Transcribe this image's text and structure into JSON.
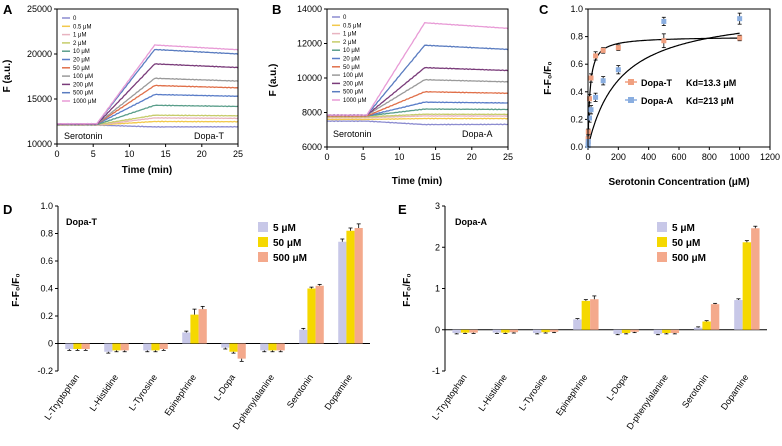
{
  "chart_data": [
    {
      "panel": "A",
      "type": "line",
      "title": "",
      "xlabel": "Time (min)",
      "ylabel": "F (a.u.)",
      "xlim": [
        0,
        25
      ],
      "ylim": [
        10000,
        25000
      ],
      "xticks": [
        0,
        5,
        10,
        15,
        20,
        25
      ],
      "yticks": [
        10000,
        15000,
        20000,
        25000
      ],
      "xtick_labels": [
        "0",
        "5",
        "10",
        "15",
        "20",
        "25"
      ],
      "ytick_labels": [
        "10000",
        "15000",
        "20000",
        "25000"
      ],
      "annotations": [
        "Serotonin",
        "Dopa-T"
      ],
      "legend": [
        "0",
        "0.5 μM",
        "1 μM",
        "2 μM",
        "10 μM",
        "20 μM",
        "50 μM",
        "100 μM",
        "200 μM",
        "500 μM",
        "1000 μM"
      ],
      "colors": [
        "#8c8cd0",
        "#f2c94c",
        "#e8b4c0",
        "#c6cc6a",
        "#5a9e8a",
        "#5a7dc8",
        "#e0704a",
        "#9a9a9a",
        "#7a3c7a",
        "#5a7cc0",
        "#e89bd6"
      ],
      "baselines": [
        12100,
        12100,
        12100,
        12150,
        12150,
        12200,
        12200,
        12200,
        12200,
        12250,
        12250
      ],
      "plateaus": [
        11900,
        12500,
        12900,
        13200,
        14300,
        15500,
        16500,
        17300,
        18900,
        20500,
        21000
      ]
    },
    {
      "panel": "B",
      "type": "line",
      "title": "",
      "xlabel": "Time (min)",
      "ylabel": "F (a.u.)",
      "xlim": [
        0,
        25
      ],
      "ylim": [
        6000,
        14000
      ],
      "xticks": [
        0,
        5,
        10,
        15,
        20,
        25
      ],
      "yticks": [
        6000,
        8000,
        10000,
        12000,
        14000
      ],
      "xtick_labels": [
        "0",
        "5",
        "10",
        "15",
        "20",
        "25"
      ],
      "ytick_labels": [
        "6000",
        "8000",
        "10000",
        "12000",
        "14000"
      ],
      "annotations": [
        "Serotonin",
        "Dopa-A"
      ],
      "legend": [
        "0",
        "0.5 μM",
        "1 μM",
        "2 μM",
        "10 μM",
        "20 μM",
        "50 μM",
        "100 μM",
        "200 μM",
        "500 μM",
        "1000 μM"
      ],
      "colors": [
        "#8c8cd0",
        "#f2c94c",
        "#e8b4c0",
        "#c6cc6a",
        "#5a9e8a",
        "#5a7dc8",
        "#e0704a",
        "#9a9a9a",
        "#7a3c7a",
        "#5a7cc0",
        "#e89bd6"
      ],
      "baselines": [
        7500,
        7600,
        7700,
        7750,
        7800,
        7800,
        7800,
        7850,
        7850,
        7850,
        7850
      ],
      "plateaus": [
        7300,
        7650,
        7800,
        7900,
        8200,
        8600,
        9200,
        9900,
        10600,
        11900,
        13200
      ]
    },
    {
      "panel": "C",
      "type": "scatter",
      "title": "",
      "xlabel": "Serotonin Concentration (μM)",
      "ylabel": "F-F₀/F₀",
      "xlim": [
        0,
        1200
      ],
      "ylim": [
        0,
        1.0
      ],
      "xticks": [
        0,
        200,
        400,
        600,
        800,
        1000,
        1200
      ],
      "yticks": [
        0.0,
        0.2,
        0.4,
        0.6,
        0.8,
        1.0
      ],
      "xtick_labels": [
        "0",
        "200",
        "400",
        "600",
        "800",
        "1000",
        "1200"
      ],
      "ytick_labels": [
        "0.0",
        "0.2",
        "0.4",
        "0.6",
        "0.8",
        "1.0"
      ],
      "series": [
        {
          "name": "Dopa-T",
          "kd_label": "Kd=13.3 μM",
          "color": "#f0a080",
          "kd": 13.3,
          "vmax": 0.8,
          "x": [
            0.5,
            1,
            2,
            10,
            20,
            50,
            100,
            200,
            500,
            1000
          ],
          "y": [
            0.03,
            0.06,
            0.11,
            0.35,
            0.5,
            0.66,
            0.7,
            0.72,
            0.77,
            0.79
          ],
          "err": [
            0.02,
            0.02,
            0.02,
            0.03,
            0.03,
            0.03,
            0.02,
            0.02,
            0.05,
            0.02
          ]
        },
        {
          "name": "Dopa-A",
          "kd_label": "Kd=213 μM",
          "color": "#8aaee0",
          "kd": 213,
          "vmax": 1.0,
          "x": [
            0.5,
            1,
            2,
            10,
            20,
            50,
            100,
            200,
            500,
            1000
          ],
          "y": [
            0.01,
            0.02,
            0.04,
            0.21,
            0.27,
            0.36,
            0.48,
            0.56,
            0.91,
            0.93
          ],
          "err": [
            0.01,
            0.01,
            0.01,
            0.03,
            0.03,
            0.03,
            0.03,
            0.03,
            0.03,
            0.04
          ]
        }
      ]
    },
    {
      "panel": "D",
      "type": "bar",
      "title": "Dopa-T",
      "xlabel": "",
      "ylabel": "F-F₀/F₀",
      "ylim": [
        -0.2,
        1.0
      ],
      "yticks": [
        -0.2,
        0,
        0.2,
        0.4,
        0.6,
        0.8,
        1.0
      ],
      "ytick_labels": [
        "-0.2",
        "0",
        "0.2",
        "0.4",
        "0.6",
        "0.8",
        "1.0"
      ],
      "categories": [
        "L-Tryptophan",
        "L-Histidine",
        "L-Tyrosine",
        "Epinephrine",
        "L-Dopa",
        "D-phenylalanine",
        "Serotonin",
        "Dopamine"
      ],
      "series": [
        {
          "name": "5 μM",
          "color": "#c8c8e8",
          "values": [
            -0.04,
            -0.06,
            -0.05,
            0.08,
            -0.03,
            -0.05,
            0.1,
            0.74
          ],
          "err": [
            0.01,
            0.01,
            0.01,
            0.01,
            0.01,
            0.01,
            0.01,
            0.02
          ]
        },
        {
          "name": "50 μM",
          "color": "#f5d800",
          "values": [
            -0.04,
            -0.05,
            -0.05,
            0.21,
            -0.06,
            -0.05,
            0.4,
            0.82
          ],
          "err": [
            0.01,
            0.01,
            0.01,
            0.04,
            0.01,
            0.01,
            0.01,
            0.02
          ]
        },
        {
          "name": "500 μM",
          "color": "#f4a98c",
          "values": [
            -0.04,
            -0.05,
            -0.04,
            0.25,
            -0.11,
            -0.05,
            0.42,
            0.84
          ],
          "err": [
            0.01,
            0.01,
            0.01,
            0.02,
            0.02,
            0.01,
            0.01,
            0.03
          ]
        }
      ]
    },
    {
      "panel": "E",
      "type": "bar",
      "title": "Dopa-A",
      "xlabel": "",
      "ylabel": "F-F₀/F₀",
      "ylim": [
        -1,
        3
      ],
      "yticks": [
        -1,
        0,
        1,
        2,
        3
      ],
      "ytick_labels": [
        "-1",
        "0",
        "1",
        "2",
        "3"
      ],
      "categories": [
        "L-Tryptophan",
        "L-Histidine",
        "L-Tyrosine",
        "Epinephrine",
        "L-Dopa",
        "D-phenylalanine",
        "Serotonin",
        "Dopamine"
      ],
      "series": [
        {
          "name": "5 μM",
          "color": "#c8c8e8",
          "values": [
            -0.08,
            -0.07,
            -0.08,
            0.25,
            -0.1,
            -0.1,
            0.05,
            0.72
          ],
          "err": [
            0.02,
            0.02,
            0.02,
            0.02,
            0.02,
            0.02,
            0.02,
            0.03
          ]
        },
        {
          "name": "50 μM",
          "color": "#f5d800",
          "values": [
            -0.07,
            -0.07,
            -0.06,
            0.7,
            -0.08,
            -0.08,
            0.2,
            2.12
          ],
          "err": [
            0.02,
            0.02,
            0.02,
            0.03,
            0.02,
            0.02,
            0.02,
            0.04
          ]
        },
        {
          "name": "500 μM",
          "color": "#f4a98c",
          "values": [
            -0.07,
            -0.06,
            -0.05,
            0.74,
            -0.05,
            -0.08,
            0.62,
            2.46
          ],
          "err": [
            0.02,
            0.02,
            0.02,
            0.08,
            0.02,
            0.02,
            0.02,
            0.05
          ]
        }
      ]
    }
  ]
}
